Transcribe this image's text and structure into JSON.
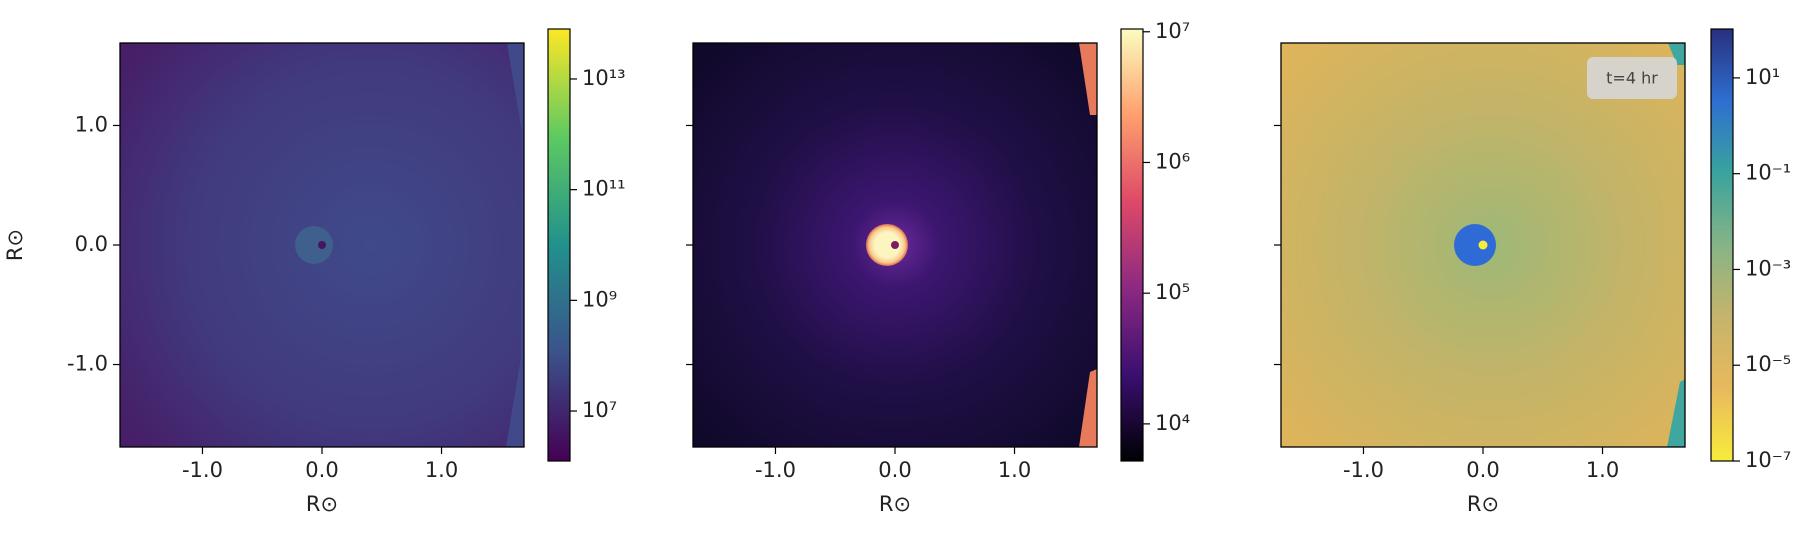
{
  "chart_data": [
    {
      "type": "image",
      "xlabel": "R⊙",
      "ylabel": "R⊙",
      "xlim": [
        -1.69,
        1.69
      ],
      "ylim": [
        -1.69,
        1.69
      ],
      "xticks": [
        {
          "value": -1,
          "label": "-1.0"
        },
        {
          "value": 0,
          "label": "0.0"
        },
        {
          "value": 1,
          "label": "1.0"
        }
      ],
      "yticks": [
        {
          "value": -1,
          "label": "-1.0"
        },
        {
          "value": 0,
          "label": "0.0"
        },
        {
          "value": 1,
          "label": "1.0"
        }
      ],
      "colorbar": {
        "log": true,
        "clim": [
          1250000.0,
          80000000000000.0
        ],
        "colors": [
          "#440154",
          "#3b528b",
          "#21918c",
          "#5ec962",
          "#fde725"
        ],
        "ticks": [
          {
            "value": 10000000.0,
            "label": "10⁷"
          },
          {
            "value": 1000000000.0,
            "label": "10⁹"
          },
          {
            "value": 100000000000.0,
            "label": "10¹¹"
          },
          {
            "value": 10000000000000.0,
            "label": "10¹³"
          }
        ]
      }
    },
    {
      "type": "image",
      "xlabel": "R⊙",
      "xlim": [
        -1.69,
        1.69
      ],
      "ylim": [
        -1.69,
        1.69
      ],
      "xticks": [
        {
          "value": -1,
          "label": "-1.0"
        },
        {
          "value": 0,
          "label": "0.0"
        },
        {
          "value": 1,
          "label": "1.0"
        }
      ],
      "yticks": [
        -1,
        0,
        1
      ],
      "colorbar": {
        "log": true,
        "clim": [
          5200.0,
          10500000.0
        ],
        "colors": [
          "#000004",
          "#3b0f70",
          "#8c2981",
          "#de4968",
          "#fe9f6d",
          "#fcfdbf"
        ],
        "ticks": [
          {
            "value": 10000.0,
            "label": "10⁴"
          },
          {
            "value": 100000.0,
            "label": "10⁵"
          },
          {
            "value": 1000000.0,
            "label": "10⁶"
          },
          {
            "value": 10000000.0,
            "label": "10⁷"
          }
        ]
      }
    },
    {
      "type": "image",
      "xlabel": "R⊙",
      "annotation": "t=4 hr",
      "xlim": [
        -1.69,
        1.69
      ],
      "ylim": [
        -1.69,
        1.69
      ],
      "xticks": [
        {
          "value": -1,
          "label": "-1.0"
        },
        {
          "value": 0,
          "label": "0.0"
        },
        {
          "value": 1,
          "label": "1.0"
        }
      ],
      "yticks": [
        -1,
        0,
        1
      ],
      "colorbar": {
        "log": true,
        "clim": [
          1e-07,
          105
        ],
        "colors": [
          "#f7ec3c",
          "#e9b95d",
          "#c5b46c",
          "#86b486",
          "#3aa39e",
          "#2e6fd0",
          "#28307e"
        ],
        "ticks": [
          {
            "value": 1e-07,
            "label": "10⁻⁷"
          },
          {
            "value": 1e-05,
            "label": "10⁻⁵"
          },
          {
            "value": 0.001,
            "label": "10⁻³"
          },
          {
            "value": 0.1,
            "label": "10⁻¹"
          },
          {
            "value": 10,
            "label": "10¹"
          }
        ]
      }
    }
  ]
}
